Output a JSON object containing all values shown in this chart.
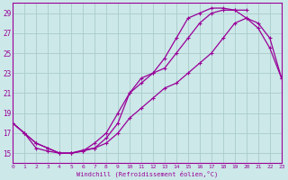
{
  "xlabel": "Windchill (Refroidissement éolien,°C)",
  "bg_color": "#cce8e8",
  "grid_color": "#aacccc",
  "line_color": "#990099",
  "xmin": 0,
  "xmax": 23,
  "ymin": 14,
  "ymax": 30,
  "yticks": [
    15,
    17,
    19,
    21,
    23,
    25,
    27,
    29
  ],
  "xticks": [
    0,
    1,
    2,
    3,
    4,
    5,
    6,
    7,
    8,
    9,
    10,
    11,
    12,
    13,
    14,
    15,
    16,
    17,
    18,
    19,
    20,
    21,
    22,
    23
  ],
  "line1_x": [
    0,
    1,
    2,
    3,
    4,
    5,
    6,
    7,
    8,
    9,
    10,
    11,
    12,
    13,
    14,
    15,
    16,
    17,
    18,
    19,
    20,
    21,
    22,
    23
  ],
  "line1_y": [
    18.0,
    17.0,
    16.0,
    15.5,
    15.0,
    15.0,
    15.2,
    16.0,
    17.0,
    19.0,
    21.0,
    22.5,
    23.0,
    23.5,
    25.0,
    26.5,
    28.0,
    29.0,
    29.3,
    29.3,
    28.5,
    28.0,
    26.5,
    22.5
  ],
  "line2_x": [
    0,
    1,
    2,
    3,
    4,
    5,
    6,
    7,
    8,
    9,
    10,
    11,
    12,
    13,
    14,
    15,
    16,
    17,
    18,
    19,
    20
  ],
  "line2_y": [
    18.0,
    17.0,
    15.5,
    15.2,
    15.0,
    15.0,
    15.3,
    15.5,
    16.5,
    18.0,
    21.0,
    22.0,
    23.0,
    24.5,
    26.5,
    28.5,
    29.0,
    29.5,
    29.5,
    29.3,
    29.3
  ],
  "line3_x": [
    0,
    1,
    2,
    3,
    4,
    5,
    6,
    7,
    8,
    9,
    10,
    11,
    12,
    13,
    14,
    15,
    16,
    17,
    18,
    19,
    20,
    21,
    22,
    23
  ],
  "line3_y": [
    18.0,
    17.0,
    16.0,
    15.5,
    15.0,
    15.0,
    15.2,
    15.5,
    16.0,
    17.0,
    18.5,
    19.5,
    20.5,
    21.5,
    22.0,
    23.0,
    24.0,
    25.0,
    26.5,
    28.0,
    28.5,
    27.5,
    25.5,
    22.5
  ]
}
